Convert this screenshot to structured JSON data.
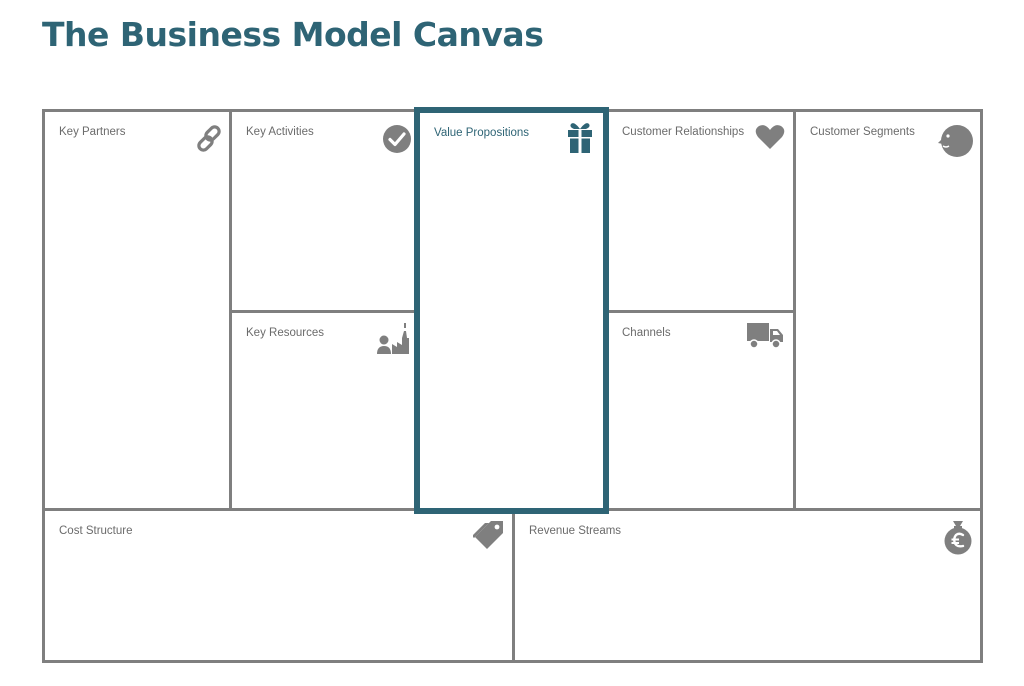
{
  "title": "The Business Model Canvas",
  "blocks": {
    "key_partners": {
      "label": "Key Partners",
      "icon": "link-icon"
    },
    "key_activities": {
      "label": "Key Activities",
      "icon": "checkmark-icon"
    },
    "key_resources": {
      "label": "Key Resources",
      "icon": "worker-factory-icon"
    },
    "value_propositions": {
      "label": "Value Propositions",
      "icon": "gift-icon"
    },
    "customer_relationships": {
      "label": "Customer Relationships",
      "icon": "heart-icon"
    },
    "channels": {
      "label": "Channels",
      "icon": "truck-icon"
    },
    "customer_segments": {
      "label": "Customer Segments",
      "icon": "face-icon"
    },
    "cost_structure": {
      "label": "Cost Structure",
      "icon": "price-tag-icon"
    },
    "revenue_streams": {
      "label": "Revenue Streams",
      "icon": "money-bag-euro-icon"
    }
  },
  "colors": {
    "accent": "#2e6475",
    "border": "#7f7f7f",
    "icon": "#7f7f7f",
    "label": "#6b6b6b"
  }
}
